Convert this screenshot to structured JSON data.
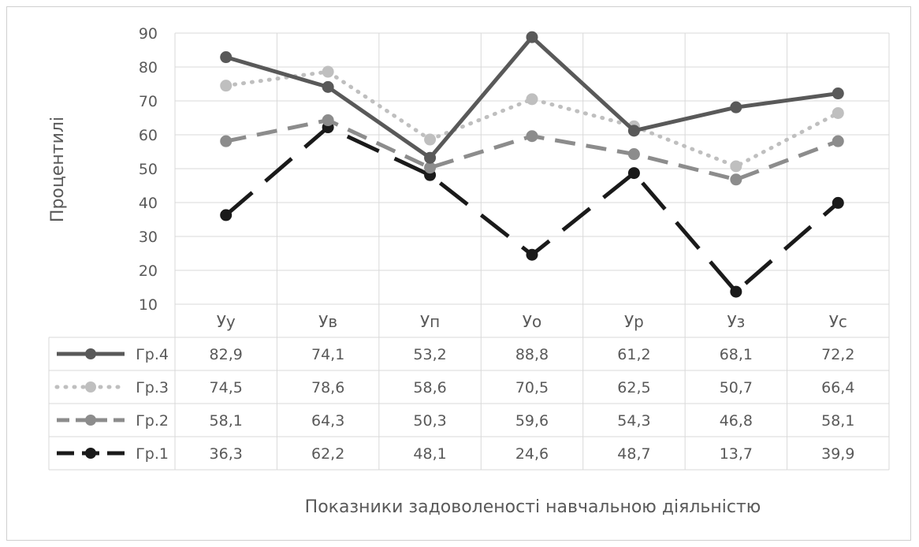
{
  "chart_data": {
    "type": "line",
    "title": "",
    "xlabel": "Показники задоволеності навчальною діяльністю",
    "ylabel": "Процентилі",
    "ylim": [
      10,
      90
    ],
    "yticks": [
      "10",
      "20",
      "30",
      "40",
      "50",
      "60",
      "70",
      "80",
      "90"
    ],
    "grid": true,
    "legend": "data-table",
    "categories": [
      "Уу",
      "Ув",
      "Уп",
      "Уо",
      "Ур",
      "Уз",
      "Ус"
    ],
    "series": [
      {
        "name": "Гр.4",
        "values": [
          82.9,
          74.1,
          53.2,
          88.8,
          61.2,
          68.1,
          72.2
        ],
        "labels": [
          "82,9",
          "74,1",
          "53,2",
          "88,8",
          "61,2",
          "68,1",
          "72,2"
        ],
        "color": "#595959",
        "dash": "solid"
      },
      {
        "name": "Гр.3",
        "values": [
          74.5,
          78.6,
          58.6,
          70.5,
          62.5,
          50.7,
          66.4
        ],
        "labels": [
          "74,5",
          "78,6",
          "58,6",
          "70,5",
          "62,5",
          "50,7",
          "66,4"
        ],
        "color": "#bfbfbf",
        "dash": "dot"
      },
      {
        "name": "Гр.2",
        "values": [
          58.1,
          64.3,
          50.3,
          59.6,
          54.3,
          46.8,
          58.1
        ],
        "labels": [
          "58,1",
          "64,3",
          "50,3",
          "59,6",
          "54,3",
          "46,8",
          "58,1"
        ],
        "color": "#8c8c8c",
        "dash": "dash"
      },
      {
        "name": "Гр.1",
        "values": [
          36.3,
          62.2,
          48.1,
          24.6,
          48.7,
          13.7,
          39.9
        ],
        "labels": [
          "36,3",
          "62,2",
          "48,1",
          "24,6",
          "48,7",
          "13,7",
          "39,9"
        ],
        "color": "#1a1a1a",
        "dash": "longdash"
      }
    ]
  }
}
